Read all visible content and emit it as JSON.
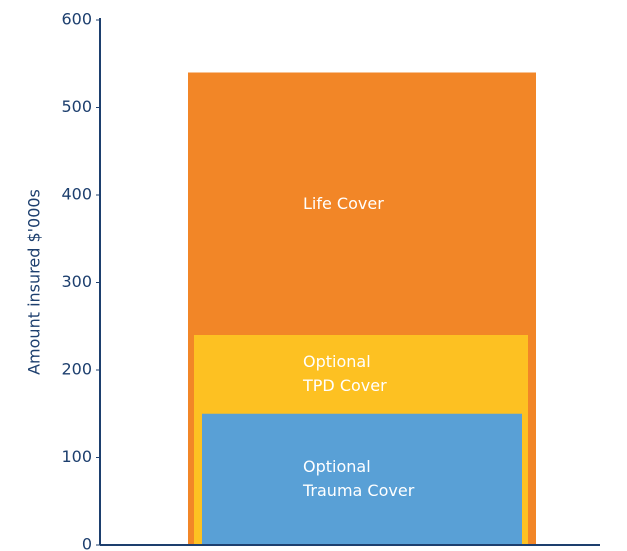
{
  "chart_data": {
    "type": "bar",
    "y_label": "Amount insured $'000s",
    "categories": [
      null
    ],
    "series": [
      {
        "name": "Life Cover",
        "color": "#f28627",
        "values": [
          540
        ]
      },
      {
        "name": "Optional\nTPD Cover",
        "color": "#fdc122",
        "values": [
          240
        ]
      },
      {
        "name": "Optional\nTrauma Cover",
        "color": "#59a0d6",
        "values": [
          150
        ]
      }
    ],
    "ylim": [
      0,
      600
    ],
    "yticks": [
      0,
      100,
      200,
      300,
      400,
      500,
      600
    ],
    "grid": false
  }
}
